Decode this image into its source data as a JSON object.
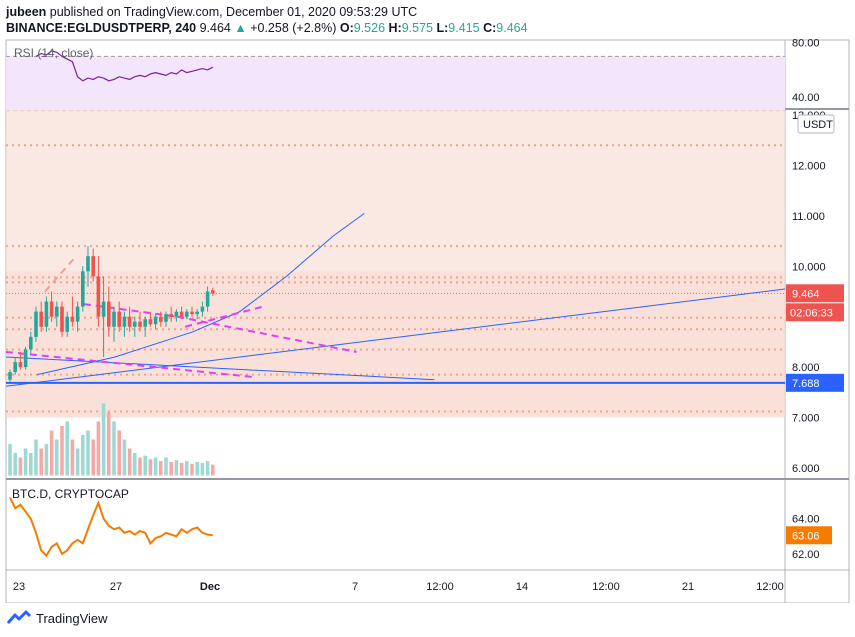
{
  "header": {
    "author": "jubeen",
    "published_text": "published on TradingView.com, December 01, 2020 09:53:29 UTC",
    "symbol": "BINANCE:EGLDUSDTPERP, 240",
    "last": "9.464",
    "change_arrow": "▲",
    "change": "+0.258 (+2.8%)",
    "o_label": "O:",
    "o_value": "9.526",
    "h_label": "H:",
    "h_value": "9.575",
    "l_label": "L:",
    "l_value": "9.415",
    "c_label": "C:",
    "c_value": "9.464"
  },
  "footer": {
    "brand": "TradingView",
    "logo_icon": "tradingview-logo-icon"
  },
  "colors": {
    "up": "#26a69a",
    "down": "#ef5350",
    "trend": "#2962ff",
    "magenta": "#e040fb",
    "rsi": "#7b1fa2",
    "btcd": "#f57c00",
    "zone": "#f8e0d8"
  },
  "chart_data": [
    {
      "type": "line",
      "name": "rsi-pane",
      "title": "RSI (14, close)",
      "ylim": [
        32,
        82
      ],
      "y_ticks": [
        "80.00",
        "40.00"
      ],
      "band": [
        30,
        70
      ],
      "values": [
        70,
        72,
        71,
        74,
        73,
        70,
        68,
        66,
        55,
        52,
        54,
        53,
        55,
        54,
        52,
        53,
        55,
        54,
        53,
        55,
        56,
        55,
        57,
        58,
        57,
        56,
        58,
        57,
        60,
        58,
        59,
        60,
        61,
        60,
        62
      ]
    },
    {
      "type": "candlestick",
      "name": "price-pane",
      "symbol": "EGLDUSDTPERP",
      "currency": "USDT",
      "ylim": [
        5.8,
        13.1
      ],
      "y_ticks": [
        "13.000",
        "12.000",
        "11.000",
        "10.000",
        "9.000",
        "8.000",
        "7.000",
        "6.000"
      ],
      "x_ticks": [
        "23",
        "27",
        "Dec",
        "7",
        "12:00",
        "14",
        "12:00",
        "21",
        "12:00"
      ],
      "last_price": "9.464",
      "countdown": "02:06:33",
      "support_price": "7.688",
      "support": 7.688,
      "dotted_levels": [
        12.4,
        10.4,
        9.78,
        9.68,
        8.98,
        8.75,
        8.35,
        7.85,
        7.12
      ],
      "candles": [
        [
          7.75,
          7.95,
          7.7,
          7.9
        ],
        [
          7.9,
          8.2,
          7.85,
          8.1
        ],
        [
          8.1,
          8.3,
          7.95,
          8.0
        ],
        [
          8.0,
          8.4,
          7.95,
          8.35
        ],
        [
          8.35,
          8.7,
          8.25,
          8.6
        ],
        [
          8.6,
          9.2,
          8.5,
          9.1
        ],
        [
          9.1,
          9.3,
          8.7,
          8.8
        ],
        [
          8.8,
          9.4,
          8.7,
          9.3
        ],
        [
          9.3,
          9.5,
          8.9,
          9.0
        ],
        [
          9.0,
          9.3,
          8.8,
          9.2
        ],
        [
          9.2,
          9.3,
          8.6,
          8.7
        ],
        [
          8.7,
          9.1,
          8.6,
          9.0
        ],
        [
          9.0,
          9.4,
          8.8,
          8.9
        ],
        [
          8.9,
          9.3,
          8.7,
          9.2
        ],
        [
          9.2,
          10.0,
          9.1,
          9.9
        ],
        [
          9.9,
          10.4,
          9.6,
          10.2
        ],
        [
          10.2,
          10.35,
          9.7,
          9.8
        ],
        [
          9.8,
          10.2,
          8.8,
          9.0
        ],
        [
          9.0,
          9.8,
          8.2,
          9.3
        ],
        [
          9.3,
          9.6,
          8.6,
          8.8
        ],
        [
          8.8,
          9.2,
          8.5,
          9.1
        ],
        [
          9.1,
          9.3,
          8.7,
          8.8
        ],
        [
          8.8,
          9.1,
          8.6,
          9.0
        ],
        [
          9.0,
          9.2,
          8.7,
          8.8
        ],
        [
          8.8,
          9.0,
          8.6,
          8.9
        ],
        [
          8.9,
          9.1,
          8.7,
          8.8
        ],
        [
          8.8,
          9.0,
          8.6,
          8.95
        ],
        [
          8.95,
          9.1,
          8.8,
          8.85
        ],
        [
          8.85,
          9.05,
          8.75,
          9.0
        ],
        [
          9.0,
          9.1,
          8.8,
          8.9
        ],
        [
          8.9,
          9.1,
          8.8,
          9.05
        ],
        [
          9.05,
          9.2,
          8.9,
          9.0
        ],
        [
          9.0,
          9.15,
          8.9,
          9.1
        ],
        [
          9.1,
          9.2,
          8.95,
          9.0
        ],
        [
          9.0,
          9.15,
          8.95,
          9.1
        ],
        [
          9.1,
          9.2,
          9.0,
          9.05
        ],
        [
          9.05,
          9.15,
          8.95,
          9.1
        ],
        [
          9.1,
          9.3,
          9.0,
          9.2
        ],
        [
          9.2,
          9.6,
          9.1,
          9.5
        ],
        [
          9.526,
          9.575,
          9.415,
          9.464
        ]
      ],
      "volume": [
        3.5,
        2.5,
        2,
        3,
        2.5,
        4,
        3,
        3.5,
        5,
        4,
        5.5,
        6,
        4,
        3,
        4.5,
        5,
        4,
        6,
        8,
        7,
        6,
        5,
        4,
        3,
        2.5,
        2,
        2.2,
        1.8,
        2,
        1.6,
        2,
        1.5,
        1.7,
        1.4,
        1.6,
        1.3,
        1.5,
        1.4,
        1.6,
        1.2
      ],
      "trendlines": [
        {
          "style": "solid",
          "color": "#2962ff",
          "from": [
            0,
            7.62
          ],
          "to": [
            100,
            9.55
          ]
        },
        {
          "style": "solid",
          "color": "#2962ff",
          "from": [
            0,
            8.2
          ],
          "to": [
            55,
            7.75
          ]
        },
        {
          "style": "curve",
          "color": "#2962ff",
          "points": [
            [
              4,
              7.85
            ],
            [
              14,
              8.2
            ],
            [
              24,
              8.7
            ],
            [
              30,
              9.1
            ],
            [
              36,
              9.8
            ],
            [
              42,
              10.6
            ],
            [
              46,
              11.05
            ]
          ]
        },
        {
          "style": "dashed",
          "color": "#e040fb",
          "from": [
            10,
            9.25
          ],
          "to": [
            22,
            9.0
          ]
        },
        {
          "style": "dashed",
          "color": "#e040fb",
          "from": [
            22,
            9.0
          ],
          "to": [
            45,
            8.3
          ]
        },
        {
          "style": "dashed",
          "color": "#e040fb",
          "from": [
            23,
            8.8
          ],
          "to": [
            33,
            9.2
          ]
        },
        {
          "style": "dashed",
          "color": "#e040fb",
          "from": [
            0,
            8.3
          ],
          "to": [
            32,
            7.8
          ]
        },
        {
          "style": "dashed",
          "color": "#f0a090",
          "from": [
            5,
            9.5
          ],
          "to": [
            9,
            10.2
          ]
        }
      ]
    },
    {
      "type": "line",
      "name": "btcd-pane",
      "title": "BTC.D, CRYPTOCAP",
      "ylim": [
        61.2,
        66.2
      ],
      "y_ticks": [
        "64.00",
        "62.00"
      ],
      "last_value": "63.06",
      "values": [
        65.2,
        64.6,
        64.8,
        64.4,
        64.0,
        63.2,
        62.2,
        61.9,
        62.4,
        62.6,
        62.0,
        62.2,
        62.6,
        62.8,
        62.6,
        63.4,
        64.2,
        64.9,
        64.0,
        63.6,
        63.4,
        63.5,
        63.2,
        63.3,
        63.1,
        63.3,
        63.2,
        62.6,
        62.9,
        63.0,
        63.2,
        63.1,
        63.0,
        63.4,
        63.2,
        63.4,
        63.5,
        63.2,
        63.1,
        63.06
      ]
    }
  ]
}
